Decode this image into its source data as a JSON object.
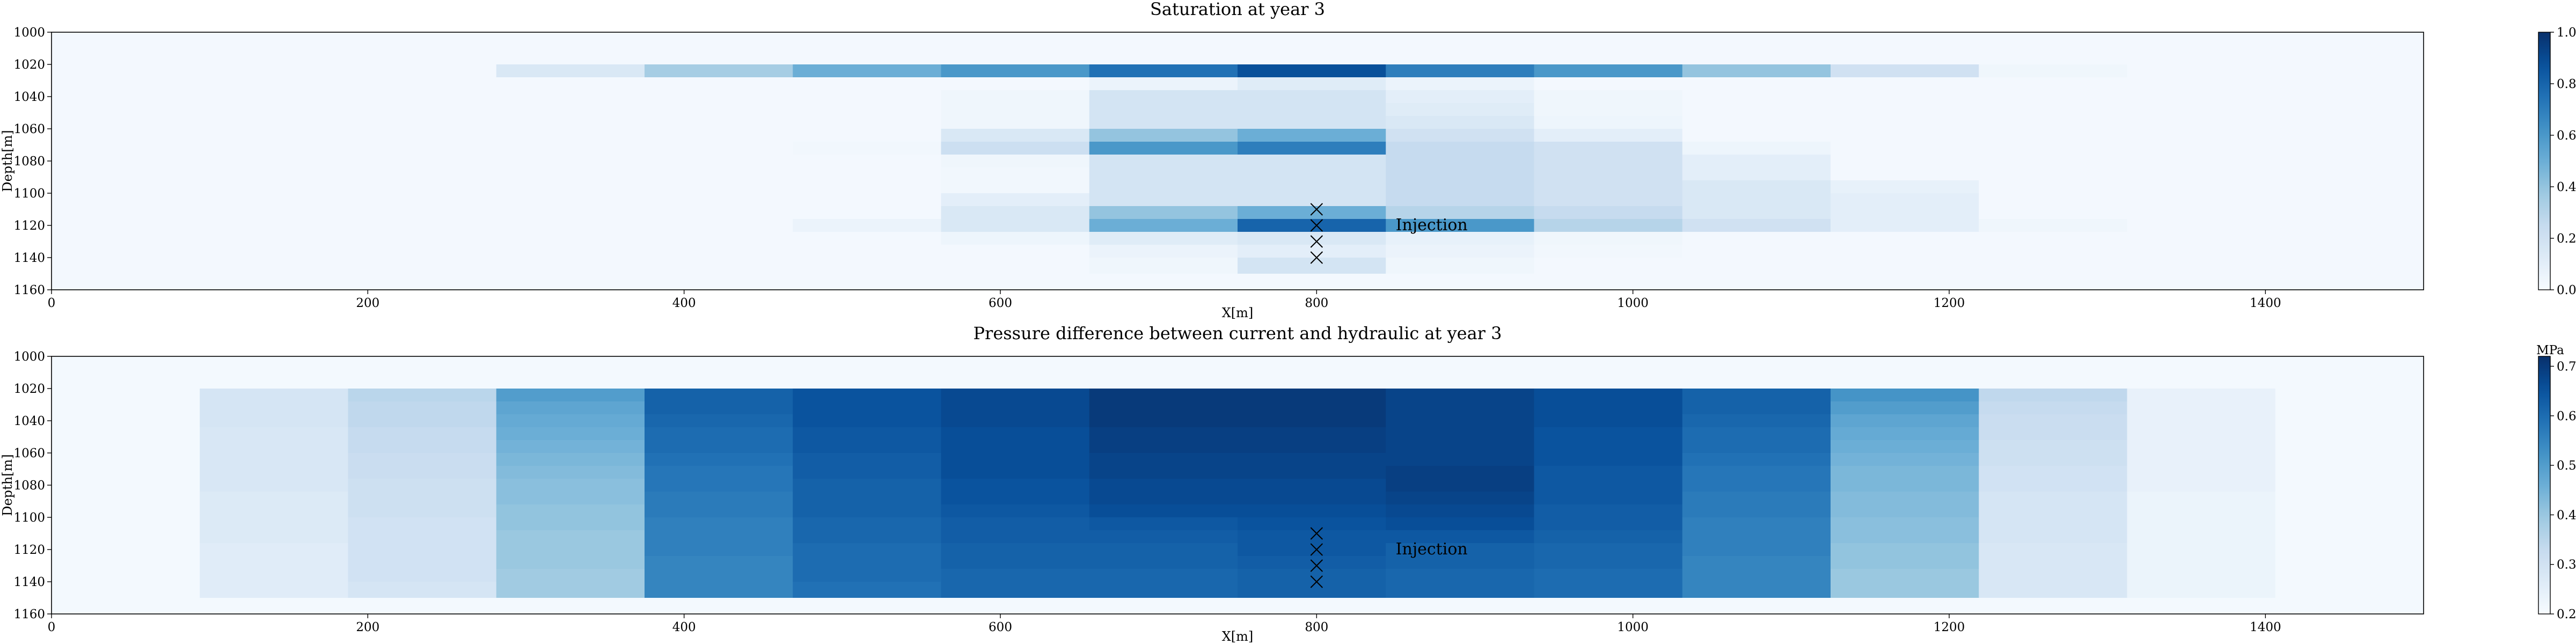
{
  "chart_data": [
    {
      "type": "heatmap",
      "title": "Saturation at year 3",
      "xlabel": "X[m]",
      "ylabel": "Depth[m]",
      "xlim": [
        0,
        1500
      ],
      "ylim": [
        1160,
        1000
      ],
      "xticks": [
        "0",
        "200",
        "400",
        "600",
        "800",
        "1000",
        "1200",
        "1400"
      ],
      "yticks": [
        "1000",
        "1020",
        "1040",
        "1060",
        "1080",
        "1100",
        "1120",
        "1140",
        "1160"
      ],
      "colorbar": {
        "label": "",
        "min": 0.0,
        "max": 1.0,
        "ticks": [
          "0.0",
          "0.2",
          "0.4",
          "0.6",
          "0.8",
          "1.0"
        ]
      },
      "colormap": {
        "low": "#f7fbff",
        "high": "#08306b"
      },
      "grid": false,
      "x_edges": [
        0,
        93.75,
        187.5,
        281.25,
        375,
        468.75,
        562.5,
        656.25,
        750,
        843.75,
        937.5,
        1031.25,
        1125,
        1218.75,
        1312.5,
        1406.25,
        1500
      ],
      "y_edges": [
        1000,
        1020,
        1028,
        1036,
        1044,
        1052,
        1060,
        1068,
        1076,
        1084,
        1092,
        1100,
        1108,
        1116,
        1124,
        1132,
        1140,
        1150,
        1160
      ],
      "values": [
        [
          0.02,
          0.02,
          0.02,
          0.02,
          0.02,
          0.02,
          0.02,
          0.02,
          0.02,
          0.02,
          0.02,
          0.02,
          0.02,
          0.02,
          0.02,
          0.02
        ],
        [
          0.02,
          0.02,
          0.02,
          0.15,
          0.35,
          0.5,
          0.6,
          0.75,
          0.88,
          0.7,
          0.6,
          0.4,
          0.2,
          0.04,
          0.02,
          0.02
        ],
        [
          0.02,
          0.02,
          0.02,
          0.02,
          0.02,
          0.02,
          0.02,
          0.06,
          0.12,
          0.06,
          0.02,
          0.02,
          0.02,
          0.02,
          0.02,
          0.02
        ],
        [
          0.02,
          0.02,
          0.02,
          0.02,
          0.02,
          0.02,
          0.04,
          0.18,
          0.18,
          0.1,
          0.04,
          0.02,
          0.02,
          0.02,
          0.02,
          0.02
        ],
        [
          0.02,
          0.02,
          0.02,
          0.02,
          0.02,
          0.02,
          0.04,
          0.18,
          0.18,
          0.12,
          0.04,
          0.02,
          0.02,
          0.02,
          0.02,
          0.02
        ],
        [
          0.02,
          0.02,
          0.02,
          0.02,
          0.02,
          0.02,
          0.04,
          0.18,
          0.18,
          0.15,
          0.05,
          0.02,
          0.02,
          0.02,
          0.02,
          0.02
        ],
        [
          0.02,
          0.02,
          0.02,
          0.02,
          0.02,
          0.02,
          0.15,
          0.4,
          0.5,
          0.2,
          0.1,
          0.02,
          0.02,
          0.02,
          0.02,
          0.02
        ],
        [
          0.02,
          0.02,
          0.02,
          0.02,
          0.02,
          0.03,
          0.22,
          0.6,
          0.7,
          0.25,
          0.2,
          0.05,
          0.02,
          0.02,
          0.02,
          0.02
        ],
        [
          0.02,
          0.02,
          0.02,
          0.02,
          0.02,
          0.02,
          0.04,
          0.18,
          0.18,
          0.25,
          0.2,
          0.1,
          0.02,
          0.02,
          0.02,
          0.02
        ],
        [
          0.02,
          0.02,
          0.02,
          0.02,
          0.02,
          0.02,
          0.03,
          0.18,
          0.18,
          0.25,
          0.2,
          0.1,
          0.02,
          0.02,
          0.02,
          0.02
        ],
        [
          0.02,
          0.02,
          0.02,
          0.02,
          0.02,
          0.02,
          0.03,
          0.18,
          0.18,
          0.25,
          0.2,
          0.15,
          0.08,
          0.02,
          0.02,
          0.02
        ],
        [
          0.02,
          0.02,
          0.02,
          0.02,
          0.02,
          0.02,
          0.1,
          0.18,
          0.18,
          0.25,
          0.2,
          0.15,
          0.1,
          0.02,
          0.02,
          0.02
        ],
        [
          0.02,
          0.02,
          0.02,
          0.02,
          0.02,
          0.02,
          0.15,
          0.4,
          0.5,
          0.3,
          0.25,
          0.15,
          0.1,
          0.02,
          0.02,
          0.02
        ],
        [
          0.02,
          0.02,
          0.02,
          0.02,
          0.02,
          0.06,
          0.15,
          0.5,
          0.8,
          0.6,
          0.3,
          0.2,
          0.1,
          0.04,
          0.02,
          0.02
        ],
        [
          0.02,
          0.02,
          0.02,
          0.02,
          0.02,
          0.02,
          0.05,
          0.12,
          0.15,
          0.08,
          0.04,
          0.02,
          0.02,
          0.02,
          0.02,
          0.02
        ],
        [
          0.02,
          0.02,
          0.02,
          0.02,
          0.02,
          0.02,
          0.02,
          0.06,
          0.1,
          0.06,
          0.03,
          0.02,
          0.02,
          0.02,
          0.02,
          0.02
        ],
        [
          0.02,
          0.02,
          0.02,
          0.02,
          0.02,
          0.02,
          0.02,
          0.04,
          0.18,
          0.04,
          0.02,
          0.02,
          0.02,
          0.02,
          0.02,
          0.02
        ],
        [
          0.02,
          0.02,
          0.02,
          0.02,
          0.02,
          0.02,
          0.02,
          0.02,
          0.02,
          0.02,
          0.02,
          0.02,
          0.02,
          0.02,
          0.02,
          0.02
        ]
      ],
      "markers": {
        "symbol": "x",
        "x": 800,
        "depths": [
          1110,
          1120,
          1130,
          1140
        ]
      },
      "annotation": {
        "text": "Injection",
        "x": 850,
        "y": 1120
      }
    },
    {
      "type": "heatmap",
      "title": "Pressure difference between current and hydraulic at year 3",
      "xlabel": "X[m]",
      "ylabel": "Depth[m]",
      "xlim": [
        0,
        1500
      ],
      "ylim": [
        1160,
        1000
      ],
      "xticks": [
        "0",
        "200",
        "400",
        "600",
        "800",
        "1000",
        "1200",
        "1400"
      ],
      "yticks": [
        "1000",
        "1020",
        "1040",
        "1060",
        "1080",
        "1100",
        "1120",
        "1140",
        "1160"
      ],
      "colorbar": {
        "label": "MPa",
        "min": 0.2,
        "max": 0.72,
        "ticks": [
          "0.2",
          "0.3",
          "0.4",
          "0.5",
          "0.6",
          "0.7"
        ]
      },
      "colormap": {
        "low": "#f7fbff",
        "high": "#08306b"
      },
      "grid": false,
      "x_edges": [
        0,
        93.75,
        187.5,
        281.25,
        375,
        468.75,
        562.5,
        656.25,
        750,
        843.75,
        937.5,
        1031.25,
        1125,
        1218.75,
        1312.5,
        1406.25,
        1500
      ],
      "y_edges": [
        1000,
        1020,
        1028,
        1036,
        1044,
        1052,
        1060,
        1068,
        1076,
        1084,
        1092,
        1100,
        1108,
        1116,
        1124,
        1132,
        1140,
        1150,
        1160
      ],
      "values": [
        [
          0.21,
          0.21,
          0.21,
          0.21,
          0.21,
          0.21,
          0.21,
          0.21,
          0.21,
          0.21,
          0.21,
          0.21,
          0.21,
          0.21,
          0.21,
          0.21
        ],
        [
          0.21,
          0.29,
          0.35,
          0.5,
          0.62,
          0.65,
          0.67,
          0.7,
          0.7,
          0.68,
          0.66,
          0.62,
          0.52,
          0.34,
          0.24,
          0.21
        ],
        [
          0.21,
          0.29,
          0.34,
          0.48,
          0.62,
          0.65,
          0.67,
          0.7,
          0.7,
          0.68,
          0.66,
          0.62,
          0.5,
          0.33,
          0.24,
          0.21
        ],
        [
          0.21,
          0.29,
          0.34,
          0.47,
          0.61,
          0.65,
          0.67,
          0.7,
          0.7,
          0.68,
          0.66,
          0.61,
          0.48,
          0.32,
          0.24,
          0.21
        ],
        [
          0.21,
          0.28,
          0.33,
          0.46,
          0.6,
          0.64,
          0.66,
          0.69,
          0.69,
          0.68,
          0.65,
          0.6,
          0.47,
          0.32,
          0.24,
          0.21
        ],
        [
          0.21,
          0.28,
          0.33,
          0.45,
          0.6,
          0.64,
          0.66,
          0.69,
          0.69,
          0.68,
          0.65,
          0.6,
          0.46,
          0.31,
          0.24,
          0.21
        ],
        [
          0.21,
          0.28,
          0.32,
          0.44,
          0.59,
          0.63,
          0.66,
          0.68,
          0.68,
          0.68,
          0.65,
          0.59,
          0.45,
          0.31,
          0.24,
          0.21
        ],
        [
          0.21,
          0.28,
          0.32,
          0.43,
          0.58,
          0.63,
          0.66,
          0.68,
          0.68,
          0.69,
          0.64,
          0.58,
          0.44,
          0.3,
          0.24,
          0.21
        ],
        [
          0.21,
          0.28,
          0.31,
          0.42,
          0.58,
          0.62,
          0.65,
          0.67,
          0.67,
          0.69,
          0.64,
          0.58,
          0.44,
          0.3,
          0.24,
          0.21
        ],
        [
          0.21,
          0.27,
          0.31,
          0.42,
          0.57,
          0.62,
          0.65,
          0.67,
          0.67,
          0.68,
          0.64,
          0.57,
          0.43,
          0.29,
          0.23,
          0.21
        ],
        [
          0.21,
          0.27,
          0.31,
          0.41,
          0.57,
          0.62,
          0.64,
          0.66,
          0.66,
          0.67,
          0.63,
          0.57,
          0.43,
          0.29,
          0.23,
          0.21
        ],
        [
          0.21,
          0.27,
          0.3,
          0.41,
          0.56,
          0.61,
          0.63,
          0.64,
          0.65,
          0.66,
          0.63,
          0.56,
          0.42,
          0.29,
          0.23,
          0.21
        ],
        [
          0.21,
          0.27,
          0.3,
          0.4,
          0.56,
          0.61,
          0.63,
          0.63,
          0.64,
          0.64,
          0.62,
          0.56,
          0.42,
          0.29,
          0.23,
          0.21
        ],
        [
          0.21,
          0.26,
          0.3,
          0.4,
          0.56,
          0.6,
          0.62,
          0.62,
          0.64,
          0.62,
          0.61,
          0.56,
          0.41,
          0.28,
          0.23,
          0.21
        ],
        [
          0.21,
          0.26,
          0.3,
          0.4,
          0.55,
          0.6,
          0.62,
          0.62,
          0.63,
          0.62,
          0.61,
          0.55,
          0.41,
          0.28,
          0.23,
          0.21
        ],
        [
          0.21,
          0.26,
          0.3,
          0.39,
          0.55,
          0.6,
          0.61,
          0.61,
          0.62,
          0.61,
          0.6,
          0.55,
          0.4,
          0.28,
          0.23,
          0.21
        ],
        [
          0.21,
          0.26,
          0.29,
          0.39,
          0.55,
          0.59,
          0.61,
          0.61,
          0.62,
          0.61,
          0.6,
          0.55,
          0.4,
          0.28,
          0.23,
          0.21
        ],
        [
          0.21,
          0.21,
          0.21,
          0.21,
          0.21,
          0.21,
          0.21,
          0.21,
          0.21,
          0.21,
          0.21,
          0.21,
          0.21,
          0.21,
          0.21,
          0.21
        ]
      ],
      "markers": {
        "symbol": "x",
        "x": 800,
        "depths": [
          1110,
          1120,
          1130,
          1140
        ]
      },
      "annotation": {
        "text": "Injection",
        "x": 850,
        "y": 1120
      }
    }
  ]
}
